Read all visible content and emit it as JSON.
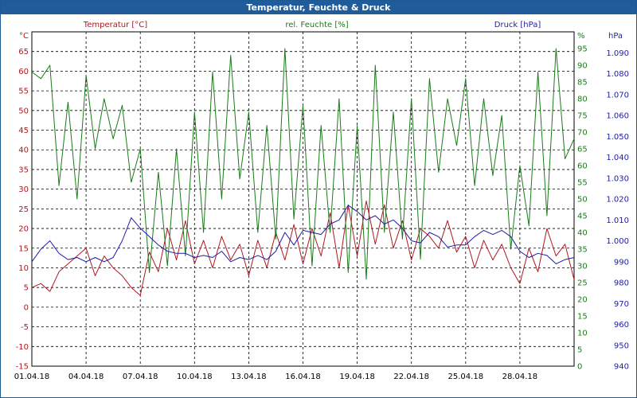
{
  "window": {
    "title": "Temperatur, Feuchte & Druck"
  },
  "colors": {
    "temperature": "#b0171f",
    "humidity": "#1a7a1a",
    "pressure": "#1c1ca8",
    "title_bar": "#1f5c99",
    "grid": "#000000"
  },
  "chart_data": {
    "type": "line",
    "title": "Temperatur, Feuchte & Druck",
    "x_axis": {
      "type": "date",
      "range": [
        "01.04.18",
        "01.05.18"
      ],
      "tick_labels": [
        "01.04.18",
        "04.04.18",
        "07.04.18",
        "10.04.18",
        "13.04.18",
        "16.04.18",
        "19.04.18",
        "22.04.18",
        "25.04.18",
        "28.04.18"
      ]
    },
    "axes": {
      "temperature": {
        "label": "Temperatur [°C]",
        "unit": "°C",
        "range": [
          -15,
          70
        ],
        "ticks": [
          -15,
          -10,
          -5,
          0,
          5,
          10,
          15,
          20,
          25,
          30,
          35,
          40,
          45,
          50,
          55,
          60,
          65
        ]
      },
      "humidity": {
        "label": "rel. Feuchte [%]",
        "unit": "%",
        "range": [
          0,
          100
        ],
        "ticks": [
          0,
          5,
          10,
          15,
          20,
          25,
          30,
          35,
          40,
          45,
          50,
          55,
          60,
          65,
          70,
          75,
          80,
          85,
          90,
          95
        ]
      },
      "pressure": {
        "label": "Druck [hPa]",
        "unit": "hPa",
        "range": [
          940,
          1100
        ],
        "ticks": [
          940,
          950,
          960,
          970,
          980,
          990,
          1000,
          1010,
          1020,
          1030,
          1040,
          1050,
          1060,
          1070,
          1080,
          1090
        ]
      }
    },
    "grid": true,
    "series": [
      {
        "name": "Temperatur [°C]",
        "axis": "temperature",
        "x": [
          1,
          1.5,
          2,
          2.5,
          3,
          3.5,
          4,
          4.5,
          5,
          5.5,
          6,
          6.5,
          7,
          7.5,
          8,
          8.5,
          9,
          9.5,
          10,
          10.5,
          11,
          11.5,
          12,
          12.5,
          13,
          13.5,
          14,
          14.5,
          15,
          15.5,
          16,
          16.5,
          17,
          17.5,
          18,
          18.5,
          19,
          19.5,
          20,
          20.5,
          21,
          21.5,
          22,
          22.5,
          23,
          23.5,
          24,
          24.5,
          25,
          25.5,
          26,
          26.5,
          27,
          27.5,
          28,
          28.5,
          29,
          29.5,
          30,
          30.5,
          31
        ],
        "y": [
          5,
          6,
          4,
          9,
          11,
          13,
          15,
          8,
          13,
          10,
          8,
          5,
          3,
          14,
          9,
          20,
          12,
          22,
          11,
          17,
          10,
          18,
          12,
          16,
          8,
          17,
          10,
          19,
          12,
          21,
          11,
          20,
          13,
          24,
          10,
          26,
          13,
          27,
          16,
          26,
          15,
          22,
          12,
          20,
          18,
          15,
          22,
          14,
          18,
          10,
          17,
          12,
          16,
          10,
          6,
          15,
          9,
          20,
          13,
          16,
          7
        ]
      },
      {
        "name": "rel. Feuchte [%]",
        "axis": "humidity",
        "x": [
          1,
          1.5,
          2,
          2.5,
          3,
          3.5,
          4,
          4.5,
          5,
          5.5,
          6,
          6.5,
          7,
          7.5,
          8,
          8.5,
          9,
          9.5,
          10,
          10.5,
          11,
          11.5,
          12,
          12.5,
          13,
          13.5,
          14,
          14.5,
          15,
          15.5,
          16,
          16.5,
          17,
          17.5,
          18,
          18.5,
          19,
          19.5,
          20,
          20.5,
          21,
          21.5,
          22,
          22.5,
          23,
          23.5,
          24,
          24.5,
          25,
          25.5,
          26,
          26.5,
          27,
          27.5,
          28,
          28.5,
          29,
          29.5,
          30,
          30.5,
          31
        ],
        "y": [
          88,
          86,
          90,
          54,
          79,
          50,
          87,
          65,
          80,
          68,
          78,
          55,
          65,
          28,
          58,
          30,
          65,
          33,
          76,
          40,
          88,
          50,
          93,
          56,
          76,
          40,
          72,
          38,
          95,
          44,
          78,
          30,
          72,
          40,
          80,
          28,
          72,
          26,
          90,
          40,
          76,
          38,
          80,
          32,
          86,
          58,
          80,
          66,
          86,
          54,
          80,
          57,
          75,
          35,
          60,
          42,
          88,
          45,
          95,
          62,
          68
        ]
      },
      {
        "name": "Druck [hPa]",
        "axis": "pressure",
        "x": [
          1,
          1.5,
          2,
          2.5,
          3,
          3.5,
          4,
          4.5,
          5,
          5.5,
          6,
          6.5,
          7,
          7.5,
          8,
          8.5,
          9,
          9.5,
          10,
          10.5,
          11,
          11.5,
          12,
          12.5,
          13,
          13.5,
          14,
          14.5,
          15,
          15.5,
          16,
          16.5,
          17,
          17.5,
          18,
          18.5,
          19,
          19.5,
          20,
          20.5,
          21,
          21.5,
          22,
          22.5,
          23,
          23.5,
          24,
          24.5,
          25,
          25.5,
          26,
          26.5,
          27,
          27.5,
          28,
          28.5,
          29,
          29.5,
          30,
          30.5,
          31
        ],
        "y": [
          990,
          996,
          1000,
          994,
          991,
          992,
          990,
          992,
          990,
          992,
          1000,
          1011,
          1006,
          1002,
          998,
          995,
          994,
          994,
          992,
          993,
          992,
          995,
          990,
          992,
          991,
          993,
          991,
          995,
          1004,
          998,
          1005,
          1004,
          1003,
          1008,
          1010,
          1017,
          1014,
          1010,
          1012,
          1008,
          1010,
          1006,
          1000,
          999,
          1004,
          1002,
          997,
          998,
          998,
          1002,
          1005,
          1003,
          1005,
          1002,
          995,
          992,
          994,
          993,
          989,
          991,
          992
        ]
      }
    ]
  }
}
